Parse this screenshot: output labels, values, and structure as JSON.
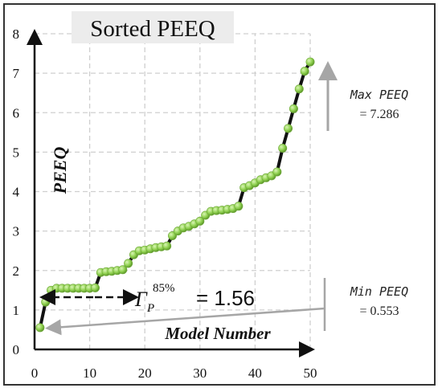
{
  "chart_data": {
    "type": "scatter",
    "title": "Sorted PEEQ",
    "xlabel": "Model Number",
    "ylabel": "PEEQ",
    "xlim": [
      0,
      50
    ],
    "ylim": [
      0,
      8
    ],
    "xticks": [
      "0",
      "10",
      "20",
      "30",
      "40",
      "50"
    ],
    "yticks": [
      "0",
      "1",
      "2",
      "3",
      "4",
      "5",
      "6",
      "7",
      "8"
    ],
    "grid": true,
    "marker_color": "#8fd14f",
    "line_color": "#111111",
    "x": [
      1,
      2,
      3,
      4,
      5,
      6,
      7,
      8,
      9,
      10,
      11,
      12,
      13,
      14,
      15,
      16,
      17,
      18,
      19,
      20,
      21,
      22,
      23,
      24,
      25,
      26,
      27,
      28,
      29,
      30,
      31,
      32,
      33,
      34,
      35,
      36,
      37,
      38,
      39,
      40,
      41,
      42,
      43,
      44,
      45,
      46,
      47,
      48,
      49,
      50
    ],
    "values": [
      0.553,
      1.2,
      1.5,
      1.55,
      1.55,
      1.55,
      1.55,
      1.55,
      1.55,
      1.55,
      1.56,
      1.95,
      1.97,
      1.98,
      2.0,
      2.02,
      2.18,
      2.4,
      2.5,
      2.52,
      2.55,
      2.58,
      2.6,
      2.62,
      2.88,
      3.0,
      3.08,
      3.12,
      3.18,
      3.25,
      3.4,
      3.5,
      3.52,
      3.53,
      3.55,
      3.57,
      3.63,
      4.1,
      4.15,
      4.22,
      4.3,
      4.35,
      4.4,
      4.5,
      5.1,
      5.6,
      6.1,
      6.6,
      7.05,
      7.286
    ]
  },
  "annotations": {
    "max_label": "Max PEEQ",
    "max_value": "= 7.286",
    "min_label": "Min PEEQ",
    "min_value": "= 0.553",
    "gamma_symbol": "Γ",
    "gamma_sub": "P",
    "gamma_sup": "85%",
    "gamma_value": "= 1.56"
  }
}
